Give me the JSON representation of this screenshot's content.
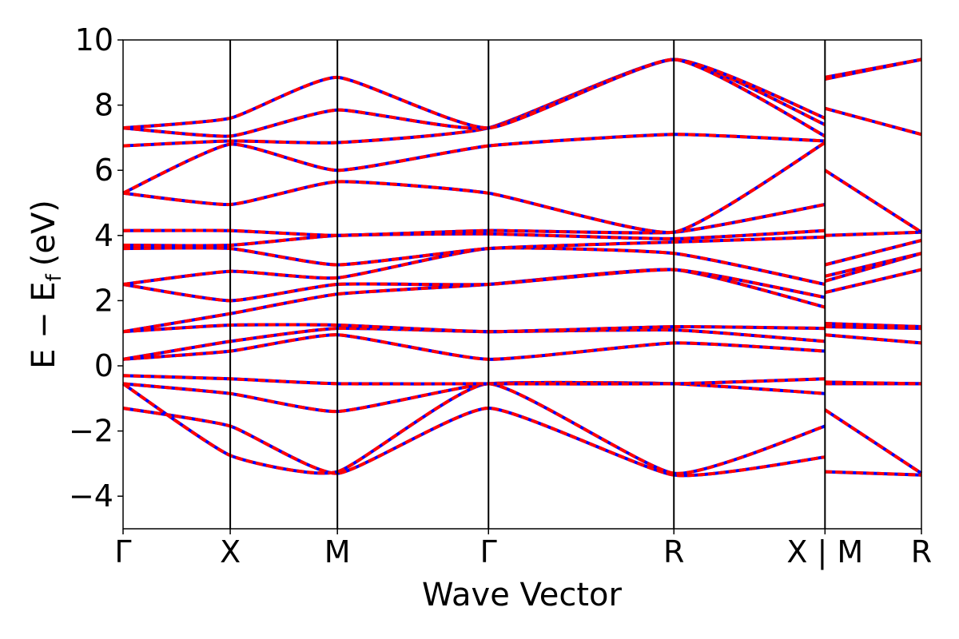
{
  "chart_data": {
    "type": "line",
    "xlabel": "Wave Vector",
    "ylabel": "E − E",
    "ylabel_subscript": "f",
    "ylabel_unit": "(eV)",
    "ylim": [
      -5,
      10
    ],
    "yticks": [
      -4,
      -2,
      0,
      2,
      4,
      6,
      8,
      10
    ],
    "ytick_labels": [
      "−4",
      "−2",
      "0",
      "2",
      "4",
      "6",
      "8",
      "10"
    ],
    "xlim": [
      0,
      7.45
    ],
    "high_symmetry_points": [
      {
        "label": "Γ",
        "x": 0.0
      },
      {
        "label": "X",
        "x": 1.0
      },
      {
        "label": "M",
        "x": 2.0
      },
      {
        "label": "Γ",
        "x": 3.41
      },
      {
        "label": "R",
        "x": 5.14
      },
      {
        "label": "X | M",
        "x": 6.55
      },
      {
        "label": "R",
        "x": 7.45
      }
    ],
    "x_separators": [
      1.0,
      2.0,
      3.41,
      5.14,
      6.55
    ],
    "series_style": [
      {
        "color": "#0000ff",
        "dash": "solid"
      },
      {
        "color": "#ff0000",
        "dash": "dashed"
      }
    ],
    "grid": false,
    "legend": "none",
    "bands": [
      {
        "x": [
          0,
          1,
          2,
          3.41,
          5.14,
          6.55
        ],
        "y": [
          -1.3,
          -1.85,
          -3.3,
          -1.3,
          -3.35,
          -2.8
        ]
      },
      {
        "x": [
          0,
          1,
          2,
          3.41,
          5.14,
          6.55
        ],
        "y": [
          -0.55,
          -2.75,
          -3.25,
          -0.55,
          -3.3,
          -1.85
        ]
      },
      {
        "x": [
          0,
          1,
          2,
          3.41,
          5.14,
          6.55
        ],
        "y": [
          -0.55,
          -0.85,
          -1.4,
          -0.55,
          -0.55,
          -0.85
        ]
      },
      {
        "x": [
          0,
          1,
          2,
          3.41,
          5.14,
          6.55
        ],
        "y": [
          -0.3,
          -0.4,
          -0.55,
          -0.55,
          -0.55,
          -0.4
        ]
      },
      {
        "x": [
          0,
          1,
          2,
          3.41,
          5.14,
          6.55
        ],
        "y": [
          0.2,
          0.45,
          0.95,
          0.2,
          0.7,
          0.45
        ]
      },
      {
        "x": [
          0,
          1,
          2,
          3.41,
          5.14,
          6.55
        ],
        "y": [
          0.2,
          0.75,
          1.15,
          1.05,
          1.1,
          0.75
        ]
      },
      {
        "x": [
          0,
          1,
          2,
          3.41,
          5.14,
          6.55
        ],
        "y": [
          1.05,
          1.25,
          1.25,
          1.05,
          1.2,
          1.15
        ]
      },
      {
        "x": [
          0,
          1,
          2,
          3.41,
          5.14,
          6.55
        ],
        "y": [
          1.05,
          1.6,
          2.2,
          2.5,
          2.95,
          1.8
        ]
      },
      {
        "x": [
          0,
          1,
          2,
          3.41,
          5.14,
          6.55
        ],
        "y": [
          2.5,
          2.0,
          2.5,
          2.5,
          2.95,
          2.1
        ]
      },
      {
        "x": [
          0,
          1,
          2,
          3.41,
          5.14,
          6.55
        ],
        "y": [
          2.5,
          2.9,
          2.7,
          3.6,
          3.45,
          2.5
        ]
      },
      {
        "x": [
          0,
          1,
          2,
          3.41,
          5.14,
          6.55
        ],
        "y": [
          3.6,
          3.6,
          3.1,
          3.6,
          3.8,
          3.95
        ]
      },
      {
        "x": [
          0,
          1,
          2,
          3.41,
          5.14,
          6.55
        ],
        "y": [
          3.7,
          3.7,
          4.0,
          4.05,
          3.9,
          4.15
        ]
      },
      {
        "x": [
          0,
          1,
          2,
          3.41,
          5.14,
          6.55
        ],
        "y": [
          4.15,
          4.15,
          4.0,
          4.15,
          4.1,
          4.95
        ]
      },
      {
        "x": [
          0,
          1,
          2,
          3.41,
          5.14,
          6.55
        ],
        "y": [
          5.3,
          4.95,
          5.65,
          5.3,
          4.1,
          6.85
        ]
      },
      {
        "x": [
          0,
          1,
          2,
          3.41,
          5.14,
          6.55
        ],
        "y": [
          5.3,
          6.8,
          6.0,
          6.75,
          7.1,
          6.9
        ]
      },
      {
        "x": [
          0,
          1,
          2,
          3.41,
          5.14,
          6.55
        ],
        "y": [
          6.75,
          6.9,
          6.85,
          7.3,
          9.4,
          7.4
        ]
      },
      {
        "x": [
          0,
          1,
          2,
          3.41,
          5.14,
          6.55
        ],
        "y": [
          7.3,
          7.05,
          7.85,
          7.3,
          9.4,
          7.6
        ]
      },
      {
        "x": [
          0,
          1,
          2,
          3.41,
          5.14,
          6.55
        ],
        "y": [
          7.3,
          7.6,
          8.85,
          7.3,
          9.4,
          7.05
        ]
      },
      {
        "x": [
          6.55,
          7.45
        ],
        "y": [
          -3.25,
          -3.35
        ]
      },
      {
        "x": [
          6.55,
          7.45
        ],
        "y": [
          -1.35,
          -3.3
        ]
      },
      {
        "x": [
          6.55,
          7.45
        ],
        "y": [
          -0.55,
          -0.55
        ]
      },
      {
        "x": [
          6.55,
          7.45
        ],
        "y": [
          -0.5,
          -0.55
        ]
      },
      {
        "x": [
          6.55,
          7.45
        ],
        "y": [
          0.95,
          0.7
        ]
      },
      {
        "x": [
          6.55,
          7.45
        ],
        "y": [
          1.2,
          1.15
        ]
      },
      {
        "x": [
          6.55,
          7.45
        ],
        "y": [
          1.3,
          1.2
        ]
      },
      {
        "x": [
          6.55,
          7.45
        ],
        "y": [
          2.25,
          2.95
        ]
      },
      {
        "x": [
          6.55,
          7.45
        ],
        "y": [
          2.6,
          3.45
        ]
      },
      {
        "x": [
          6.55,
          7.45
        ],
        "y": [
          2.75,
          3.45
        ]
      },
      {
        "x": [
          6.55,
          7.45
        ],
        "y": [
          3.1,
          3.85
        ]
      },
      {
        "x": [
          6.55,
          7.45
        ],
        "y": [
          4.0,
          4.1
        ]
      },
      {
        "x": [
          6.55,
          7.45
        ],
        "y": [
          6.0,
          4.1
        ]
      },
      {
        "x": [
          6.55,
          7.45
        ],
        "y": [
          7.9,
          7.1
        ]
      },
      {
        "x": [
          6.55,
          7.45
        ],
        "y": [
          8.85,
          9.4
        ]
      },
      {
        "x": [
          6.55,
          7.45
        ],
        "y": [
          8.8,
          9.4
        ]
      }
    ]
  }
}
